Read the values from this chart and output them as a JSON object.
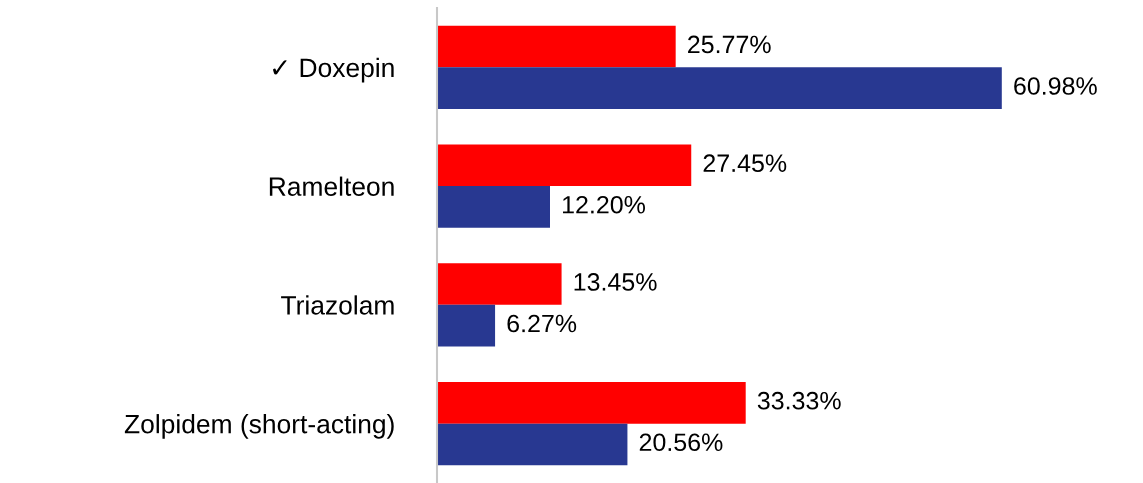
{
  "chart_data": {
    "type": "bar",
    "orientation": "horizontal",
    "categories": [
      "✓ Doxepin",
      "Ramelteon",
      "Triazolam",
      "Zolpidem (short-acting)"
    ],
    "series": [
      {
        "color": "#ff0000",
        "values": [
          25.77,
          27.45,
          13.45,
          33.33
        ],
        "value_labels": [
          "25.77%",
          "27.45%",
          "13.45%",
          "33.33%"
        ]
      },
      {
        "color": "#283891",
        "values": [
          60.98,
          12.2,
          6.27,
          20.56
        ],
        "value_labels": [
          "60.98%",
          "12.20%",
          "6.27%",
          "20.56%"
        ]
      }
    ],
    "tick_labels": "y",
    "grid": false,
    "legend": false
  }
}
